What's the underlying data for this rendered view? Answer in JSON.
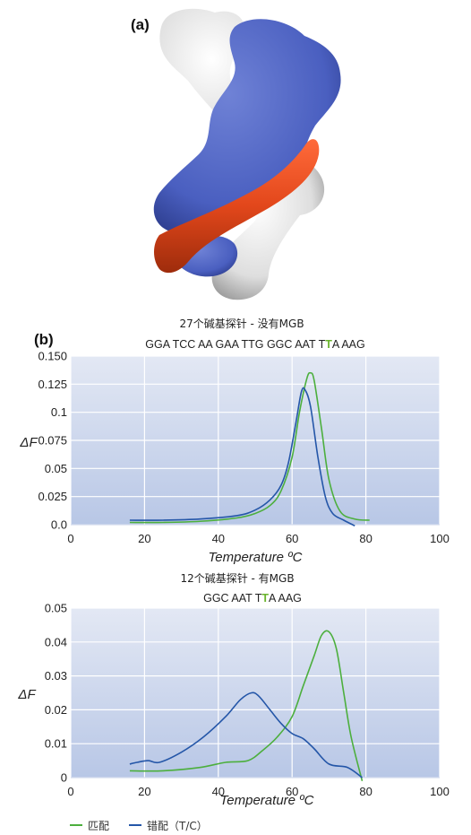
{
  "panel_a_label": "(a)",
  "panel_b_label": "(b)",
  "colors": {
    "match": "#4caf3d",
    "mismatch": "#2456a8",
    "highlight": "#6ab42d",
    "plot_bg_top": "#dfe5f3",
    "plot_bg_bottom": "#bccbe7"
  },
  "legend": [
    {
      "label": "匹配",
      "color": "#4caf3d"
    },
    {
      "label": "错配（T/C）",
      "color": "#2456a8"
    }
  ],
  "chart_data": [
    {
      "type": "line",
      "title": "27个碱基探针 - 没有MGB",
      "sequence": {
        "before": "GGA TCC AA GAA TTG GGC AAT T",
        "highlight": "T",
        "after": "A AAG"
      },
      "xlabel": "Temperature ºC",
      "ylabel": "ΔF",
      "xlim": [
        0,
        100
      ],
      "ylim": [
        0,
        0.15
      ],
      "xticks": [
        "0",
        "20",
        "40",
        "60",
        "80",
        "100"
      ],
      "yticks": [
        "0.0",
        "0.025",
        "0.05",
        "0.075",
        "0.1",
        "0.125",
        "0.150"
      ],
      "ytick_values": [
        0,
        0.025,
        0.05,
        0.075,
        0.1,
        0.125,
        0.15
      ],
      "grid": true,
      "series": [
        {
          "name": "匹配",
          "color": "#4caf3d",
          "x": [
            16,
            25,
            35,
            45,
            50,
            54,
            57,
            60,
            62,
            64,
            65,
            66,
            68,
            70,
            73,
            77,
            81
          ],
          "y": [
            0.002,
            0.002,
            0.003,
            0.006,
            0.01,
            0.017,
            0.03,
            0.06,
            0.1,
            0.13,
            0.135,
            0.128,
            0.085,
            0.04,
            0.012,
            0.005,
            0.004
          ]
        },
        {
          "name": "错配（T/C）",
          "color": "#2456a8",
          "x": [
            16,
            25,
            35,
            45,
            50,
            54,
            57,
            59,
            61,
            62.5,
            63.5,
            65,
            67,
            69,
            71,
            74,
            77
          ],
          "y": [
            0.004,
            0.004,
            0.005,
            0.008,
            0.013,
            0.022,
            0.035,
            0.055,
            0.09,
            0.118,
            0.12,
            0.105,
            0.06,
            0.025,
            0.01,
            0.004,
            -0.001
          ]
        }
      ]
    },
    {
      "type": "line",
      "title": "12个碱基探针 - 有MGB",
      "sequence": {
        "before": "GGC AAT T",
        "highlight": "T",
        "after": "A AAG"
      },
      "xlabel": "Temperature ºC",
      "ylabel": "ΔF",
      "xlim": [
        0,
        100
      ],
      "ylim": [
        0,
        0.05
      ],
      "xticks": [
        "0",
        "20",
        "40",
        "60",
        "80",
        "100"
      ],
      "yticks": [
        "0",
        "0.01",
        "0.02",
        "0.03",
        "0.04",
        "0.05"
      ],
      "ytick_values": [
        0,
        0.01,
        0.02,
        0.03,
        0.04,
        0.05
      ],
      "grid": true,
      "series": [
        {
          "name": "匹配",
          "color": "#4caf3d",
          "x": [
            16,
            25,
            35,
            42,
            48,
            52,
            56,
            60,
            63,
            66,
            68,
            70,
            72,
            74,
            76,
            79
          ],
          "y": [
            0.002,
            0.002,
            0.003,
            0.0045,
            0.005,
            0.008,
            0.012,
            0.018,
            0.027,
            0.036,
            0.042,
            0.043,
            0.038,
            0.025,
            0.012,
            -0.001
          ]
        },
        {
          "name": "错配（T/C）",
          "color": "#2456a8",
          "x": [
            16,
            18,
            21,
            24,
            30,
            36,
            42,
            46,
            49,
            51,
            54,
            57,
            60,
            63,
            66,
            70,
            75,
            79
          ],
          "y": [
            0.004,
            0.0045,
            0.005,
            0.0045,
            0.0075,
            0.012,
            0.018,
            0.023,
            0.025,
            0.024,
            0.02,
            0.016,
            0.013,
            0.0115,
            0.0085,
            0.004,
            0.003,
            0.0
          ]
        }
      ]
    }
  ]
}
